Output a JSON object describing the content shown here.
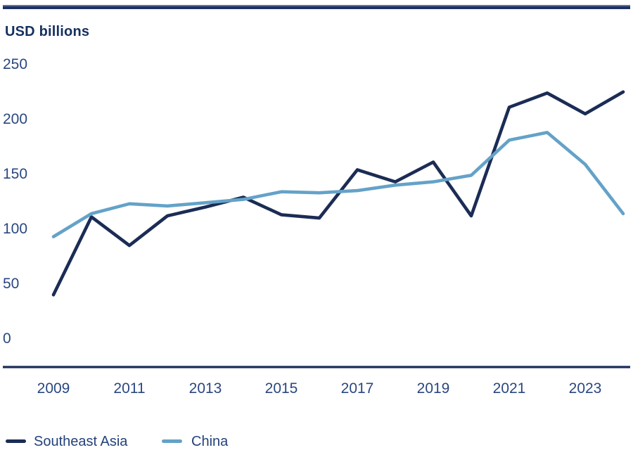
{
  "chart_data": {
    "type": "line",
    "title": "USD billions",
    "ylabel": "USD billions",
    "ylim": [
      0,
      250
    ],
    "yticks": [
      0,
      50,
      100,
      150,
      200,
      250
    ],
    "x": [
      2009,
      2010,
      2011,
      2012,
      2013,
      2014,
      2015,
      2016,
      2017,
      2018,
      2019,
      2020,
      2021,
      2022,
      2023,
      2024
    ],
    "xticks": [
      2009,
      2011,
      2013,
      2015,
      2017,
      2019,
      2021,
      2023
    ],
    "grid": false,
    "legend_position": "bottom",
    "series": [
      {
        "name": "Southeast Asia",
        "color": "#1b2c55",
        "values": [
          40,
          111,
          85,
          112,
          120,
          129,
          113,
          110,
          154,
          143,
          161,
          112,
          211,
          224,
          205,
          225
        ]
      },
      {
        "name": "China",
        "color": "#64a2c8",
        "values": [
          93,
          114,
          123,
          121,
          124,
          127,
          134,
          133,
          135,
          140,
          143,
          149,
          181,
          188,
          159,
          114
        ]
      }
    ]
  },
  "colors": {
    "accent_bar": "#1e3160",
    "axis_line": "#1b2d5a"
  }
}
